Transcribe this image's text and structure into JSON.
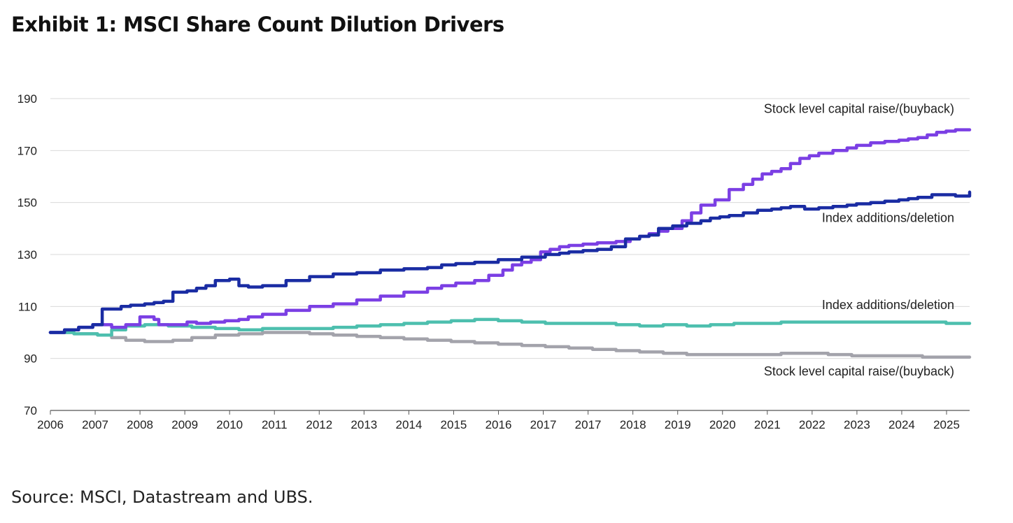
{
  "title": "Exhibit 1: MSCI Share Count Dilution Drivers",
  "source": "Source: MSCI, Datastream and UBS.",
  "chart_data": {
    "type": "line",
    "title": "Exhibit 1: MSCI Share Count Dilution Drivers",
    "xlabel": "",
    "ylabel": "",
    "ylim": [
      70,
      190
    ],
    "xlim": [
      2006.0,
      2025.5
    ],
    "yticks": [
      70,
      90,
      110,
      130,
      150,
      170,
      190
    ],
    "xtick_labels": [
      "2006",
      "2007",
      "2008",
      "2009",
      "2010",
      "2011",
      "2012",
      "2013",
      "2014",
      "2015",
      "2016",
      "2017",
      "2017",
      "2018",
      "2019",
      "2020",
      "2021",
      "2022",
      "2023",
      "2024",
      "2025"
    ],
    "grid": "horizontal",
    "series": [
      {
        "name": "Stock level capital raise/(buyback)",
        "color": "#7B3FE4",
        "x": [
          2006.0,
          2006.3,
          2006.6,
          2006.9,
          2007.1,
          2007.3,
          2007.45,
          2007.6,
          2007.9,
          2008.1,
          2008.2,
          2008.3,
          2008.5,
          2008.7,
          2008.9,
          2009.1,
          2009.4,
          2009.7,
          2010.0,
          2010.2,
          2010.5,
          2011.0,
          2011.5,
          2012.0,
          2012.5,
          2013.0,
          2013.5,
          2014.0,
          2014.3,
          2014.6,
          2015.0,
          2015.3,
          2015.6,
          2015.8,
          2016.0,
          2016.2,
          2016.4,
          2016.6,
          2016.8,
          2017.0,
          2017.3,
          2017.6,
          2018.0,
          2018.3,
          2018.5,
          2018.7,
          2018.9,
          2019.1,
          2019.4,
          2019.6,
          2019.8,
          2020.1,
          2020.4,
          2020.7,
          2020.9,
          2021.1,
          2021.3,
          2021.5,
          2021.7,
          2021.9,
          2022.1,
          2022.3,
          2022.6,
          2022.9,
          2023.1,
          2023.4,
          2023.7,
          2024.0,
          2024.2,
          2024.4,
          2024.6,
          2024.8,
          2025.0,
          2025.2,
          2025.5
        ],
        "y": [
          100,
          101,
          102,
          103,
          103,
          102,
          102,
          103,
          106,
          106,
          105,
          103,
          103,
          103,
          104,
          103.5,
          104,
          104.5,
          105,
          106,
          107,
          108.5,
          110,
          111,
          112.5,
          114,
          115.5,
          117,
          118,
          119,
          120,
          122,
          124,
          126,
          127,
          128,
          131,
          132,
          133,
          133.5,
          134,
          134.5,
          135,
          136,
          137,
          138,
          139,
          140,
          143,
          146,
          149,
          151,
          155,
          157,
          159,
          161,
          162,
          163,
          165,
          167,
          168,
          169,
          170,
          171,
          172,
          173,
          173.5,
          174,
          174.5,
          175,
          176,
          177,
          177.5,
          178,
          178
        ]
      },
      {
        "name": "Index additions/deletion",
        "color": "#1A2CA3",
        "x": [
          2006.0,
          2006.3,
          2006.6,
          2006.9,
          2007.05,
          2007.1,
          2007.3,
          2007.5,
          2007.7,
          2008.0,
          2008.2,
          2008.4,
          2008.6,
          2008.9,
          2009.1,
          2009.3,
          2009.5,
          2009.8,
          2010.0,
          2010.2,
          2010.5,
          2011.0,
          2011.5,
          2012.0,
          2012.5,
          2013.0,
          2013.5,
          2014.0,
          2014.3,
          2014.6,
          2015.0,
          2015.5,
          2016.0,
          2016.5,
          2016.8,
          2017.0,
          2017.3,
          2017.6,
          2017.9,
          2018.2,
          2018.5,
          2018.7,
          2018.9,
          2019.2,
          2019.5,
          2019.8,
          2020.0,
          2020.2,
          2020.4,
          2020.7,
          2021.0,
          2021.3,
          2021.5,
          2021.7,
          2022.0,
          2022.3,
          2022.6,
          2022.9,
          2023.1,
          2023.4,
          2023.7,
          2024.0,
          2024.2,
          2024.4,
          2024.7,
          2025.0,
          2025.2,
          2025.5
        ],
        "y": [
          100,
          101,
          102,
          103,
          103,
          109,
          109,
          110,
          110.5,
          111,
          111.5,
          112,
          115.5,
          116,
          117,
          118,
          120,
          120.5,
          118,
          117.5,
          118,
          120,
          121.5,
          122.5,
          123,
          124,
          124.5,
          125,
          126,
          126.5,
          127,
          128,
          129,
          130,
          130.5,
          131,
          131.5,
          132,
          133,
          136,
          137,
          137.5,
          140,
          141,
          142,
          143,
          144,
          144.5,
          145,
          146,
          147,
          147.5,
          148,
          148.5,
          147.5,
          148,
          148.5,
          149,
          149.5,
          150,
          150.5,
          151,
          151.5,
          152,
          153,
          153,
          152.5,
          154
        ]
      },
      {
        "name": "Index additions/deletion",
        "color": "#4DBFAE",
        "x": [
          2006.0,
          2006.5,
          2007.0,
          2007.3,
          2007.6,
          2008.0,
          2008.5,
          2009.0,
          2009.5,
          2010.0,
          2010.5,
          2011.0,
          2011.5,
          2012.0,
          2012.5,
          2013.0,
          2013.5,
          2014.0,
          2014.5,
          2015.0,
          2015.5,
          2016.0,
          2016.5,
          2017.0,
          2017.5,
          2018.0,
          2018.5,
          2019.0,
          2019.5,
          2019.7,
          2020.0,
          2020.5,
          2021.0,
          2021.5,
          2022.0,
          2022.5,
          2023.0,
          2023.5,
          2024.0,
          2024.5,
          2025.0,
          2025.5
        ],
        "y": [
          100,
          99.5,
          99,
          101,
          102.5,
          103,
          102.5,
          102,
          101.5,
          101,
          101.5,
          101.5,
          101.5,
          102,
          102.5,
          103,
          103.5,
          104,
          104.5,
          105,
          104.5,
          104,
          103.5,
          103.5,
          103.5,
          103,
          102.5,
          103,
          102.5,
          102.5,
          103,
          103.5,
          103.5,
          104,
          104,
          104,
          104,
          104,
          104,
          104,
          103.5,
          103.5
        ]
      },
      {
        "name": "Stock level capital raise/(buyback)",
        "color": "#A3A3AB",
        "x": [
          2006.0,
          2006.5,
          2007.0,
          2007.3,
          2007.6,
          2008.0,
          2008.3,
          2008.6,
          2009.0,
          2009.5,
          2010.0,
          2010.5,
          2011.0,
          2011.5,
          2012.0,
          2012.5,
          2013.0,
          2013.5,
          2014.0,
          2014.5,
          2015.0,
          2015.5,
          2016.0,
          2016.5,
          2017.0,
          2017.5,
          2018.0,
          2018.5,
          2019.0,
          2019.5,
          2020.0,
          2020.5,
          2021.0,
          2021.5,
          2022.0,
          2022.5,
          2023.0,
          2023.5,
          2024.0,
          2024.5,
          2025.0,
          2025.5
        ],
        "y": [
          100,
          99.5,
          99,
          98,
          97,
          96.5,
          96.5,
          97,
          98,
          99,
          99.5,
          100,
          100,
          99.5,
          99,
          98.5,
          98,
          97.5,
          97,
          96.5,
          96,
          95.5,
          95,
          94.5,
          94,
          93.5,
          93,
          92.5,
          92,
          91.5,
          91.5,
          91.5,
          91.5,
          92,
          92,
          91.5,
          91,
          91,
          91,
          90.5,
          90.5,
          90.5
        ]
      }
    ],
    "annotations": [
      {
        "text": "Stock level capital raise/(buyback)",
        "x": 2025.5,
        "y": 184.5
      },
      {
        "text": "Index additions/deletion",
        "x": 2025.5,
        "y": 142.5
      },
      {
        "text": "Index additions/deletion",
        "x": 2025.5,
        "y": 109
      },
      {
        "text": "Stock level capital raise/(buyback)",
        "x": 2025.5,
        "y": 83.5
      }
    ]
  }
}
